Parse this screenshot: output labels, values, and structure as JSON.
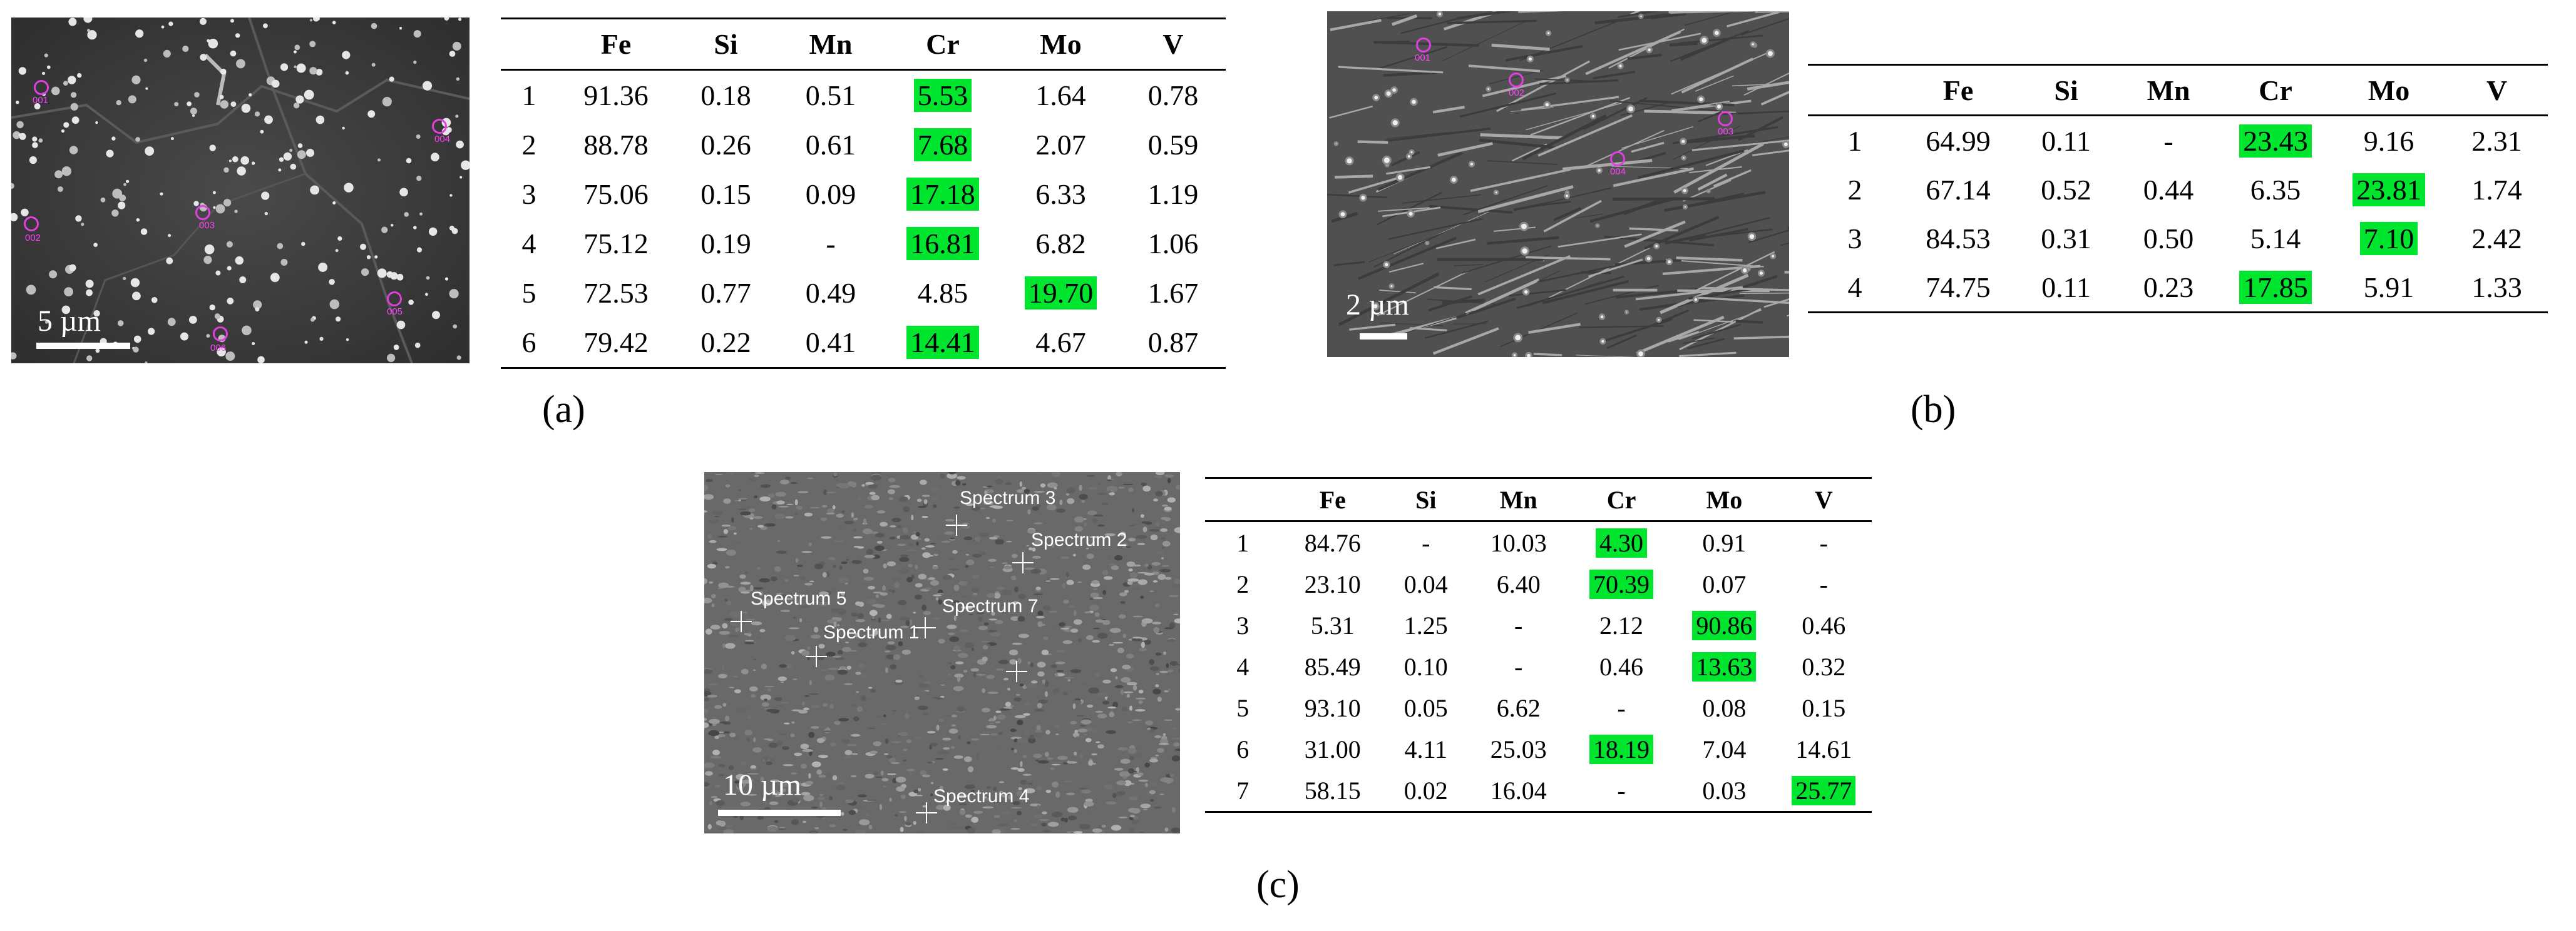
{
  "figure": {
    "panel_a": {
      "caption": "(a)",
      "scale_label": "5 µm",
      "markers": [
        "001",
        "002",
        "003",
        "004",
        "005",
        "006"
      ],
      "table": {
        "columns": [
          "",
          "Fe",
          "Si",
          "Mn",
          "Cr",
          "Mo",
          "V"
        ],
        "rows": [
          [
            "1",
            "91.36",
            "0.18",
            "0.51",
            "5.53",
            "1.64",
            "0.78"
          ],
          [
            "2",
            "88.78",
            "0.26",
            "0.61",
            "7.68",
            "2.07",
            "0.59"
          ],
          [
            "3",
            "75.06",
            "0.15",
            "0.09",
            "17.18",
            "6.33",
            "1.19"
          ],
          [
            "4",
            "75.12",
            "0.19",
            "-",
            "16.81",
            "6.82",
            "1.06"
          ],
          [
            "5",
            "72.53",
            "0.77",
            "0.49",
            "4.85",
            "19.70",
            "1.67"
          ],
          [
            "6",
            "79.42",
            "0.22",
            "0.41",
            "14.41",
            "4.67",
            "0.87"
          ]
        ]
      }
    },
    "panel_b": {
      "caption": "(b)",
      "scale_label": "2 µm",
      "markers": [
        "001",
        "002",
        "003",
        "004"
      ],
      "table": {
        "columns": [
          "",
          "Fe",
          "Si",
          "Mn",
          "Cr",
          "Mo",
          "V"
        ],
        "rows": [
          [
            "1",
            "64.99",
            "0.11",
            "-",
            "23.43",
            "9.16",
            "2.31"
          ],
          [
            "2",
            "67.14",
            "0.52",
            "0.44",
            "6.35",
            "23.81",
            "1.74"
          ],
          [
            "3",
            "84.53",
            "0.31",
            "0.50",
            "5.14",
            "7.10",
            "2.42"
          ],
          [
            "4",
            "74.75",
            "0.11",
            "0.23",
            "17.85",
            "5.91",
            "1.33"
          ]
        ]
      }
    },
    "panel_c": {
      "caption": "(c)",
      "scale_label": "10 µm",
      "spectra": [
        "Spectrum 3",
        "Spectrum 2",
        "Spectrum 5",
        "Spectrum 7",
        "Spectrum 1",
        "Spectrum 4"
      ],
      "table": {
        "columns": [
          "",
          "Fe",
          "Si",
          "Mn",
          "Cr",
          "Mo",
          "V"
        ],
        "rows": [
          [
            "1",
            "84.76",
            "-",
            "10.03",
            "4.30",
            "0.91",
            "-"
          ],
          [
            "2",
            "23.10",
            "0.04",
            "6.40",
            "70.39",
            "0.07",
            "-"
          ],
          [
            "3",
            "5.31",
            "1.25",
            "-",
            "2.12",
            "90.86",
            "0.46"
          ],
          [
            "4",
            "85.49",
            "0.10",
            "-",
            "0.46",
            "13.63",
            "0.32"
          ],
          [
            "5",
            "93.10",
            "0.05",
            "6.62",
            "-",
            "0.08",
            "0.15"
          ],
          [
            "6",
            "31.00",
            "4.11",
            "25.03",
            "18.19",
            "7.04",
            "14.61"
          ],
          [
            "7",
            "58.15",
            "0.02",
            "16.04",
            "-",
            "0.03",
            "25.77"
          ]
        ]
      }
    },
    "highlight_color": "#00e52e"
  }
}
